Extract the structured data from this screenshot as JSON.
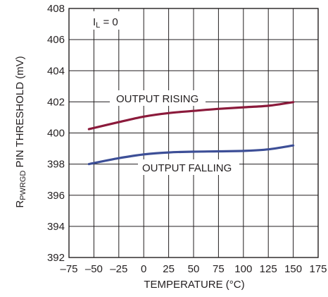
{
  "chart_data": {
    "type": "line",
    "xlabel": "TEMPERATURE (°C)",
    "ylabel": {
      "prefix": "R",
      "subscript": "PWRGD",
      "suffix": " PIN THRESHOLD (mV)"
    },
    "xlim": [
      -75,
      175
    ],
    "ylim": [
      392,
      408
    ],
    "x_ticks": [
      -75,
      -50,
      -25,
      0,
      25,
      50,
      75,
      100,
      125,
      150,
      175
    ],
    "x_tick_labels": [
      "–75",
      "–50",
      "–25",
      "0",
      "25",
      "50",
      "75",
      "100",
      "125",
      "150",
      "175"
    ],
    "y_ticks": [
      392,
      394,
      396,
      398,
      400,
      402,
      404,
      406,
      408
    ],
    "y_tick_labels": [
      "392",
      "394",
      "396",
      "398",
      "400",
      "402",
      "404",
      "406",
      "408"
    ],
    "grid": true,
    "condition": {
      "prefix": "I",
      "subscript": "L",
      "suffix": " = 0"
    },
    "series": [
      {
        "name": "OUTPUT RISING",
        "color": "#8b1a3b",
        "x": [
          -55,
          -25,
          0,
          25,
          50,
          75,
          100,
          125,
          150
        ],
        "y": [
          400.25,
          400.7,
          401.05,
          401.28,
          401.42,
          401.55,
          401.65,
          401.75,
          401.98
        ]
      },
      {
        "name": "OUTPUT FALLING",
        "color": "#3d4f97",
        "x": [
          -55,
          -25,
          0,
          25,
          50,
          75,
          100,
          125,
          150
        ],
        "y": [
          398.0,
          398.38,
          398.62,
          398.75,
          398.8,
          398.82,
          398.85,
          398.95,
          399.2
        ]
      }
    ]
  }
}
